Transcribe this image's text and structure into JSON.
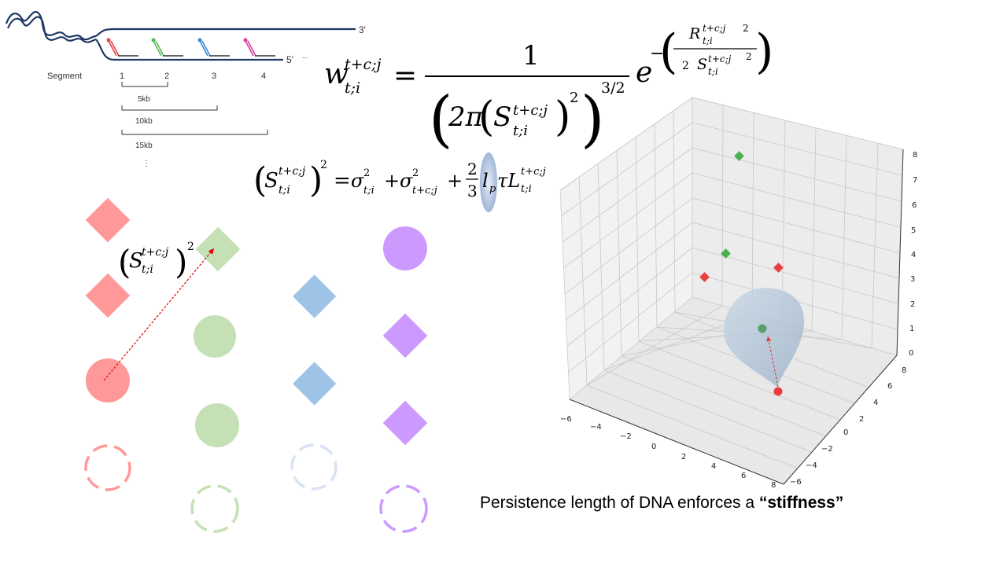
{
  "dna": {
    "label_3prime": "3'",
    "label_5prime": "5'",
    "label_dots": "...",
    "segment_label": "Segment",
    "segments": [
      "1",
      "2",
      "3",
      "4"
    ],
    "distances": [
      "5kb",
      "10kb",
      "15kb"
    ],
    "distances_more": "⋮"
  },
  "colors": {
    "red": "#ff8f8f",
    "green": "#c5dfb3",
    "blue": "#9dc3e6",
    "purple": "#cc99ff",
    "dna": "#1f3864"
  },
  "equations": {
    "main_lhs": "w",
    "main_sup": "t+c;j",
    "main_sub": "t;i",
    "equals": "=",
    "one": "1",
    "two_pi": "2π",
    "S": "S",
    "R": "R",
    "two": "2",
    "three_half": "3/2",
    "e": "e",
    "minus": "−",
    "variance_rhs": "= σ²t;i + σ²t+c;j + ",
    "frac_num": "2",
    "frac_den": "3",
    "lp": "l",
    "lp_sub": "p",
    "tau": "τL",
    "sigma": "σ",
    "sub_tcj": "t+c;j",
    "plus": "+"
  },
  "plot3d": {
    "z_ticks": [
      "0",
      "1",
      "2",
      "3",
      "4",
      "5",
      "6",
      "7",
      "8"
    ],
    "x_ticks": [
      "−6",
      "−4",
      "−2",
      "0",
      "2",
      "4",
      "6",
      "8"
    ],
    "y_ticks": [
      "8",
      "6",
      "4",
      "2",
      "0",
      "−2",
      "−4",
      "−6"
    ]
  },
  "caption": {
    "part1": "Persistence length",
    "part2": " of DNA enforces a ",
    "part3": "“stiffness”"
  }
}
